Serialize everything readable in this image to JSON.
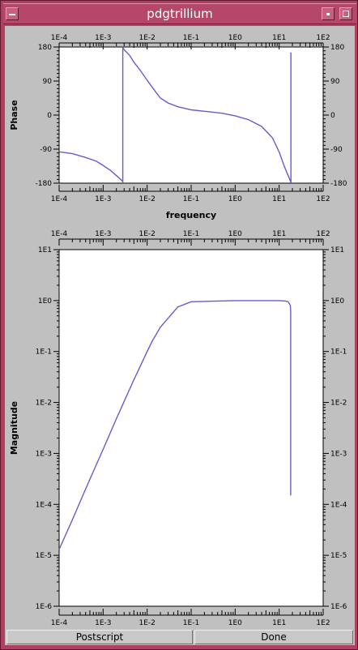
{
  "window": {
    "title": "pdgtrillium"
  },
  "buttons": {
    "postscript": "Postscript",
    "done": "Done"
  },
  "colors": {
    "titlebar": "#b5486a",
    "frame": "#b04060",
    "line": "#6a5acd",
    "background": "#c0c0c0",
    "plot_bg": "#ffffff"
  },
  "chart_data": [
    {
      "type": "line",
      "name": "phase-plot",
      "xlabel": "frequency",
      "ylabel": "Phase",
      "xscale": "log",
      "xlim": [
        0.0001,
        100
      ],
      "ylim": [
        -180,
        180
      ],
      "x_tick_labels": [
        "1E-4",
        "1E-3",
        "1E-2",
        "1E-1",
        "1E0",
        "1E1",
        "1E2"
      ],
      "y_tick_labels": [
        "180",
        "90",
        "0",
        "-90",
        "-180"
      ],
      "series": [
        {
          "x": [
            0.0001,
            0.0002,
            0.0004,
            0.0007,
            0.001,
            0.0015,
            0.002,
            0.0025,
            0.0028,
            0.0028,
            0.003,
            0.004,
            0.005,
            0.007,
            0.01,
            0.015,
            0.02,
            0.03,
            0.05,
            0.1,
            0.2,
            0.5,
            1,
            2,
            4,
            7,
            10,
            13,
            16,
            18.5,
            18.5,
            18.6
          ],
          "y": [
            -97,
            -102,
            -112,
            -122,
            -133,
            -147,
            -160,
            -170,
            -176,
            178,
            173,
            158,
            140,
            118,
            92,
            64,
            45,
            32,
            22,
            14,
            10,
            5,
            -2,
            -12,
            -30,
            -60,
            -98,
            -135,
            -160,
            -178,
            165,
            165
          ]
        }
      ]
    },
    {
      "type": "line",
      "name": "magnitude-plot",
      "xlabel": "",
      "ylabel": "Magnitude",
      "xscale": "log",
      "yscale": "log",
      "xlim": [
        0.0001,
        100
      ],
      "ylim": [
        1e-06,
        10
      ],
      "x_tick_labels": [
        "1E-4",
        "1E-3",
        "1E-2",
        "1E-1",
        "1E0",
        "1E1",
        "1E2"
      ],
      "y_tick_labels": [
        "1E1",
        "1E0",
        "1E-1",
        "1E-2",
        "1E-3",
        "1E-4",
        "1E-5",
        "1E-6"
      ],
      "series": [
        {
          "x": [
            0.0001,
            0.0002,
            0.0004,
            0.0007,
            0.001,
            0.002,
            0.003,
            0.005,
            0.007,
            0.01,
            0.013,
            0.02,
            0.05,
            0.1,
            1,
            5,
            10,
            14,
            16,
            18,
            18.3,
            18.3
          ],
          "y": [
            1.3e-05,
            5e-05,
            0.0002,
            0.0006,
            0.0012,
            0.0048,
            0.0105,
            0.028,
            0.052,
            0.1,
            0.16,
            0.3,
            0.75,
            0.95,
            1.0,
            1.0,
            1.0,
            0.98,
            0.95,
            0.8,
            0.6,
            0.00015
          ]
        }
      ]
    }
  ]
}
